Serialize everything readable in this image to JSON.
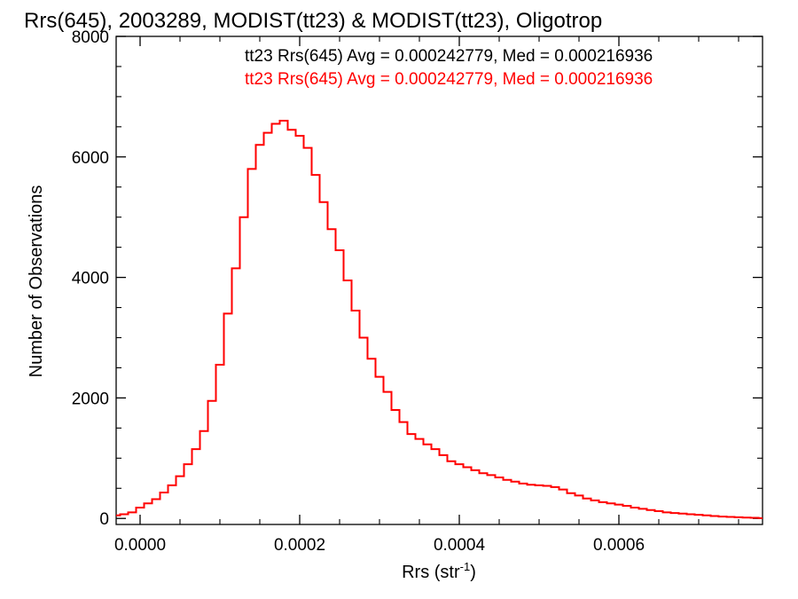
{
  "chart_data": {
    "type": "histogram",
    "title": "Rrs(645), 2003289, MODIST(tt23) & MODIST(tt23), Oligotrop",
    "xlabel": {
      "base": "Rrs (str",
      "sup": "-1",
      "close": ")"
    },
    "ylabel": "Number of Observations",
    "xlim": [
      -3e-05,
      0.00078
    ],
    "ylim": [
      -100,
      8000
    ],
    "xticks": [
      0.0,
      0.0002,
      0.0004,
      0.0006
    ],
    "xtick_labels": [
      "0.0000",
      "0.0002",
      "0.0004",
      "0.0006"
    ],
    "yticks": [
      0,
      2000,
      4000,
      6000,
      8000
    ],
    "ytick_labels": [
      "0",
      "2000",
      "4000",
      "6000",
      "8000"
    ],
    "legend": [
      {
        "text": "tt23 Rrs(645) Avg = 0.000242779, Med = 0.000216936",
        "color": "#000000"
      },
      {
        "text": "tt23 Rrs(645) Avg = 0.000242779, Med = 0.000216936",
        "color": "#ff0000"
      }
    ],
    "series": [
      {
        "color": "#ff0000",
        "x": [
          -3e-05,
          -2e-05,
          -1e-05,
          0.0,
          1e-05,
          2e-05,
          3e-05,
          4e-05,
          5e-05,
          6e-05,
          7e-05,
          8e-05,
          9e-05,
          0.0001,
          0.00011,
          0.00012,
          0.00013,
          0.00014,
          0.00015,
          0.00016,
          0.00017,
          0.00018,
          0.00019,
          0.0002,
          0.00021,
          0.00022,
          0.00023,
          0.00024,
          0.00025,
          0.00026,
          0.00027,
          0.00028,
          0.00029,
          0.0003,
          0.00031,
          0.00032,
          0.00033,
          0.00034,
          0.00035,
          0.00036,
          0.00037,
          0.00038,
          0.00039,
          0.0004,
          0.00041,
          0.00042,
          0.00043,
          0.00044,
          0.00045,
          0.00046,
          0.00047,
          0.00048,
          0.00049,
          0.0005,
          0.00051,
          0.00052,
          0.00053,
          0.00054,
          0.00055,
          0.00056,
          0.00057,
          0.00058,
          0.00059,
          0.0006,
          0.00061,
          0.00062,
          0.00063,
          0.00064,
          0.00065,
          0.00066,
          0.00067,
          0.00068,
          0.00069,
          0.0007,
          0.00071,
          0.00072,
          0.00073,
          0.00074,
          0.00075,
          0.00076,
          0.00077,
          0.00078
        ],
        "y": [
          50,
          70,
          100,
          180,
          250,
          320,
          430,
          550,
          700,
          900,
          1150,
          1450,
          1950,
          2550,
          3400,
          4150,
          5000,
          5800,
          6200,
          6400,
          6550,
          6600,
          6450,
          6350,
          6150,
          5700,
          5250,
          4800,
          4450,
          3950,
          3450,
          3000,
          2650,
          2350,
          2100,
          1800,
          1600,
          1400,
          1320,
          1230,
          1150,
          1050,
          950,
          900,
          850,
          800,
          750,
          720,
          680,
          640,
          610,
          580,
          560,
          550,
          540,
          520,
          480,
          420,
          380,
          330,
          300,
          270,
          250,
          230,
          210,
          180,
          160,
          140,
          120,
          100,
          90,
          80,
          70,
          60,
          50,
          40,
          30,
          25,
          20,
          15,
          10,
          5
        ]
      }
    ]
  }
}
